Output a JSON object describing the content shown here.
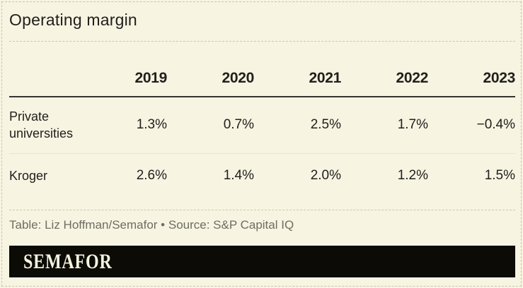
{
  "title": "Operating margin",
  "table": {
    "year_headers": [
      "2019",
      "2020",
      "2021",
      "2022",
      "2023"
    ],
    "rows": [
      {
        "label": "Private universities",
        "values": [
          "1.3%",
          "0.7%",
          "2.5%",
          "1.7%",
          "−0.4%"
        ]
      },
      {
        "label": "Kroger",
        "values": [
          "2.6%",
          "1.4%",
          "2.0%",
          "1.2%",
          "1.5%"
        ]
      }
    ]
  },
  "footer": {
    "credit": "Table: Liz Hoffman/Semafor • Source: S&P Capital IQ"
  },
  "brand": {
    "logo_text": "SEMAFOR"
  },
  "colors": {
    "bg": "#f7f4e2",
    "border_dash": "#c6c3b0",
    "sep_dash": "#c9c6b3",
    "ink": "#21201c",
    "rule": "#35342e",
    "divider": "#e6e3d1",
    "muted": "#6e6d63",
    "bar": "#0c0b06",
    "bar_text": "#f6f3e0"
  },
  "chart_data": {
    "type": "table",
    "title": "Operating margin",
    "categories": [
      "2019",
      "2020",
      "2021",
      "2022",
      "2023"
    ],
    "series": [
      {
        "name": "Private universities",
        "values": [
          1.3,
          0.7,
          2.5,
          1.7,
          -0.4
        ]
      },
      {
        "name": "Kroger",
        "values": [
          2.6,
          1.4,
          2.0,
          1.2,
          1.5
        ]
      }
    ],
    "units": "%"
  }
}
